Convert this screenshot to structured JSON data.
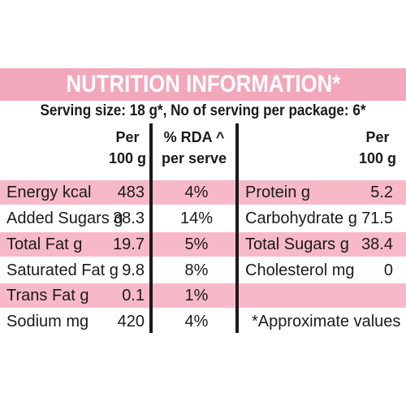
{
  "title": "NUTRITION INFORMATION*",
  "serving_line": "Serving size: 18 g*, No of serving per package: 6*",
  "headers": {
    "per_left": [
      "Per",
      "100 g"
    ],
    "rda": [
      "% RDA ^",
      "per serve"
    ],
    "per_right": [
      "Per",
      "100 g"
    ]
  },
  "left_rows": [
    {
      "name": "Energy kcal",
      "value": "483",
      "rda": "4%"
    },
    {
      "name": "Added Sugars g",
      "value": "38.3",
      "rda": "14%"
    },
    {
      "name": "Total Fat g",
      "value": "19.7",
      "rda": "5%"
    },
    {
      "name": "Saturated Fat g",
      "value": "9.8",
      "rda": "8%"
    },
    {
      "name": "Trans Fat g",
      "value": "0.1",
      "rda": "1%"
    },
    {
      "name": "Sodium mg",
      "value": "420",
      "rda": "4%"
    }
  ],
  "right_rows": [
    {
      "name": "Protein g",
      "value": "5.2"
    },
    {
      "name": "Carbohydrate g",
      "value": "71.5"
    },
    {
      "name": "Total Sugars g",
      "value": "38.4"
    },
    {
      "name": "Cholesterol mg",
      "value": "0"
    }
  ],
  "footnote": "*Approximate values",
  "colors": {
    "title_bar": "#f2a7bb",
    "row_highlight": "#f7b9c8",
    "text": "#1a1a1a"
  }
}
